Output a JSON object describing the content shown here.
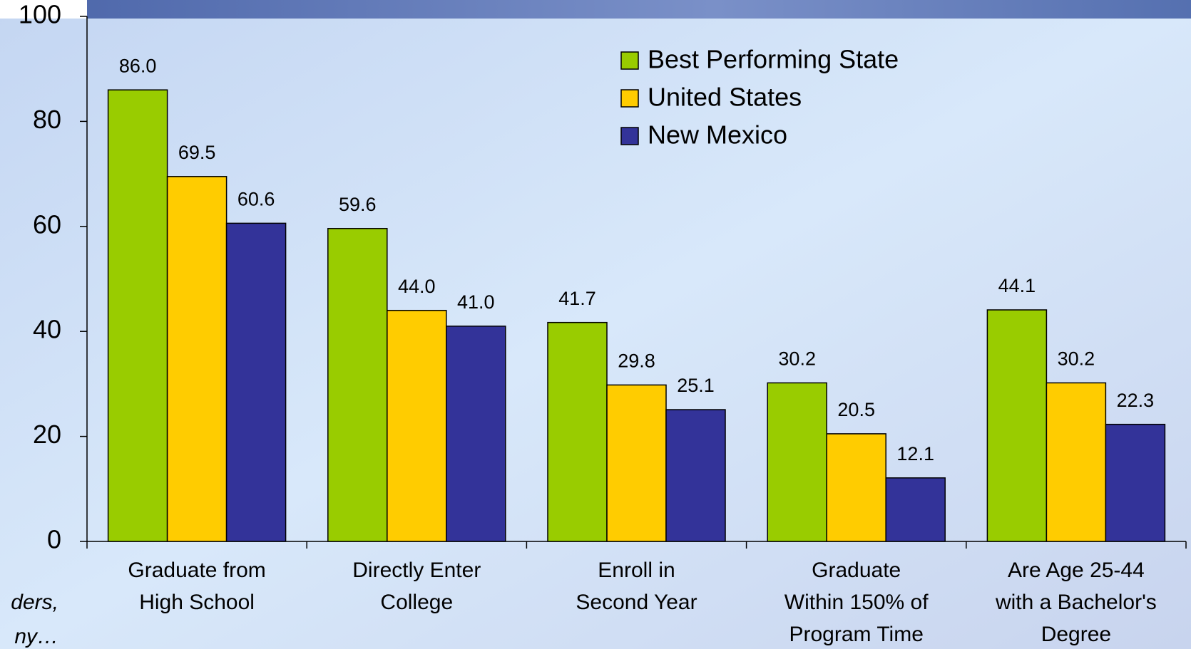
{
  "chart_data": {
    "type": "bar",
    "categories": [
      [
        "Graduate from",
        "High School"
      ],
      [
        "Directly Enter",
        "College"
      ],
      [
        "Enroll in",
        "Second Year"
      ],
      [
        "Graduate",
        "Within 150% of",
        "Program Time"
      ],
      [
        "Are Age 25-44",
        "with a Bachelor's",
        "Degree"
      ]
    ],
    "series": [
      {
        "name": "Best Performing State",
        "color": "#99cc00",
        "values": [
          86.0,
          59.6,
          41.7,
          30.2,
          44.1
        ],
        "value_labels": [
          "86.0",
          "59.6",
          "41.7",
          "30.2",
          "44.1"
        ]
      },
      {
        "name": "United States",
        "color": "#ffcc00",
        "values": [
          69.5,
          44.0,
          29.8,
          20.5,
          30.2
        ],
        "value_labels": [
          "69.5",
          "44.0",
          "29.8",
          "20.5",
          "30.2"
        ]
      },
      {
        "name": "New Mexico",
        "color": "#333399",
        "values": [
          60.6,
          41.0,
          25.1,
          12.1,
          22.3
        ],
        "value_labels": [
          "60.6",
          "41.0",
          "25.1",
          "12.1",
          "22.3"
        ]
      }
    ],
    "ylim": [
      0,
      100
    ],
    "yticks": [
      0,
      20,
      40,
      60,
      80,
      100
    ],
    "grid": false,
    "legend": "top-right",
    "annotations": [
      "ders,",
      "ny…"
    ]
  }
}
